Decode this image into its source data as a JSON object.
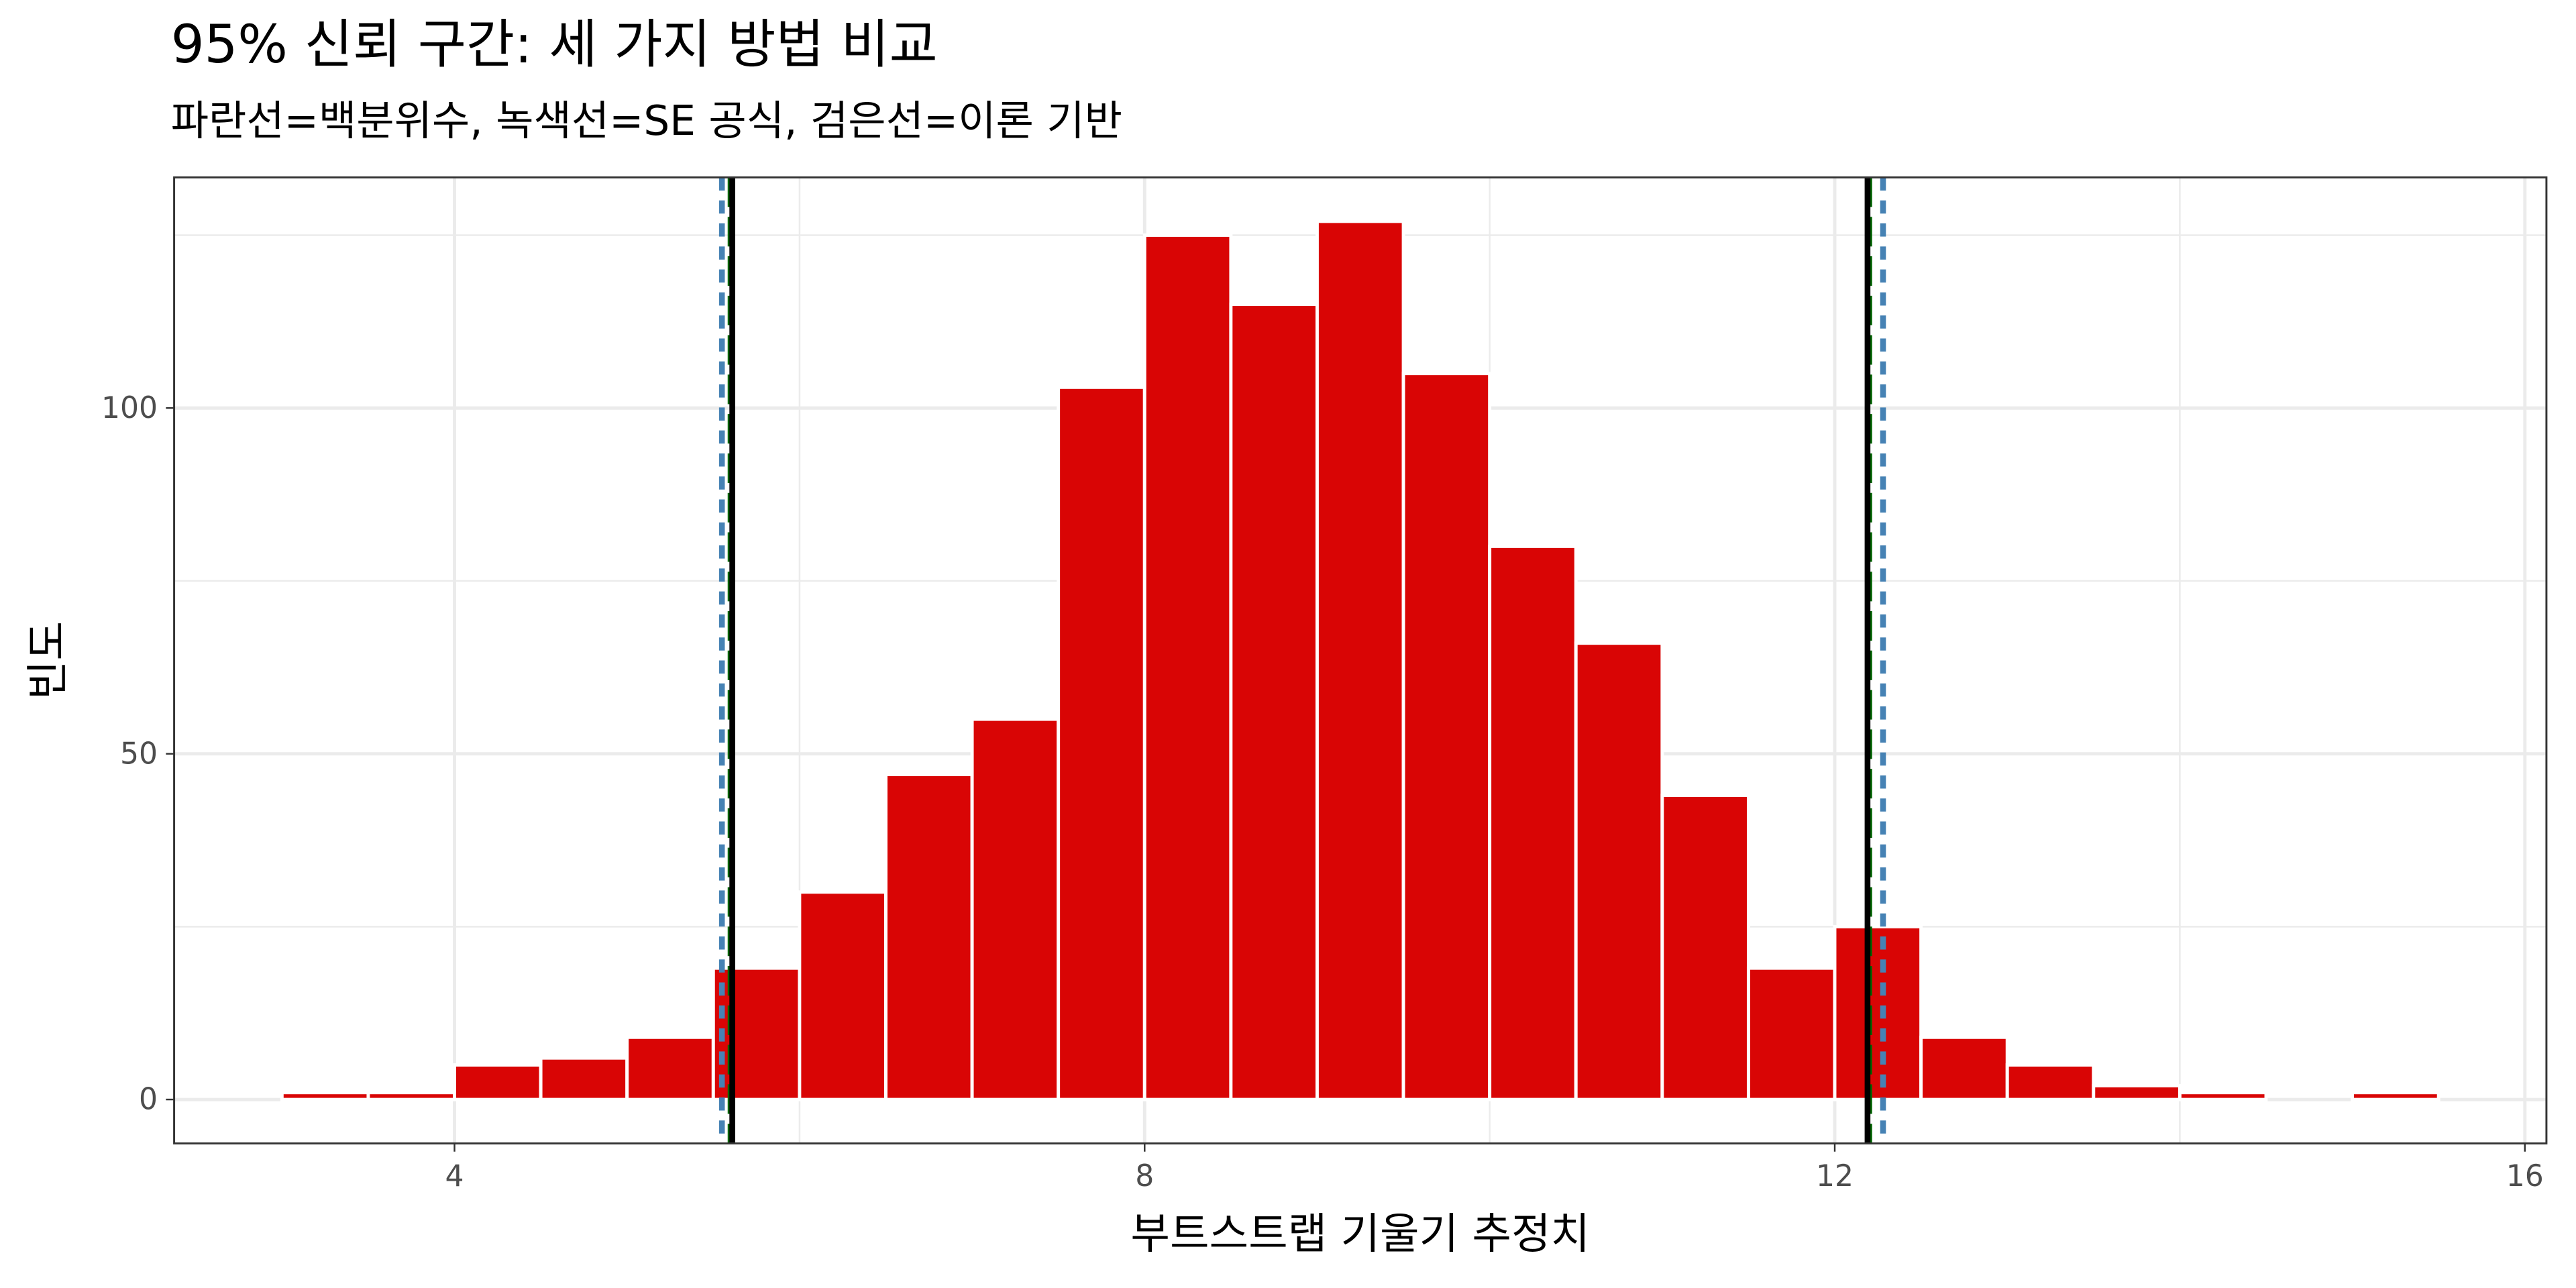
{
  "chart_data": {
    "type": "histogram",
    "title": "95% 신뢰 구간: 세 가지 방법 비교",
    "subtitle": "파란선=백분위수, 녹색선=SE 공식, 검은선=이론 기반",
    "x_label": "부트스트랩 기울기 추정치",
    "y_label": "빈도",
    "bins": [
      3.0,
      3.5,
      4.0,
      4.5,
      5.0,
      5.5,
      6.0,
      6.5,
      7.0,
      7.5,
      8.0,
      8.5,
      9.0,
      9.5,
      10.0,
      10.5,
      11.0,
      11.5,
      12.0,
      12.5,
      13.0,
      13.5,
      14.0,
      14.5,
      15.0,
      15.5
    ],
    "values": [
      1,
      1,
      5,
      6,
      9,
      19,
      30,
      47,
      55,
      103,
      125,
      115,
      127,
      105,
      80,
      66,
      44,
      19,
      25,
      9,
      5,
      2,
      1,
      0,
      1
    ],
    "color": "#d90505",
    "xlim": [
      2.375,
      16.125
    ],
    "xticks": [
      4,
      8,
      12,
      16
    ],
    "ylim": [
      -6.35,
      133.35
    ],
    "yticks": [
      0,
      50,
      100
    ],
    "grid": true,
    "vlines": [
      {
        "color": "#006400",
        "dash": "longdash",
        "values": [
          5.6,
          12.2
        ]
      },
      {
        "color": "#000000",
        "dash": "solid",
        "values": [
          5.61,
          12.19
        ]
      },
      {
        "color": "#4682b4",
        "dash": "dashed",
        "values": [
          5.55,
          12.28
        ]
      }
    ]
  }
}
